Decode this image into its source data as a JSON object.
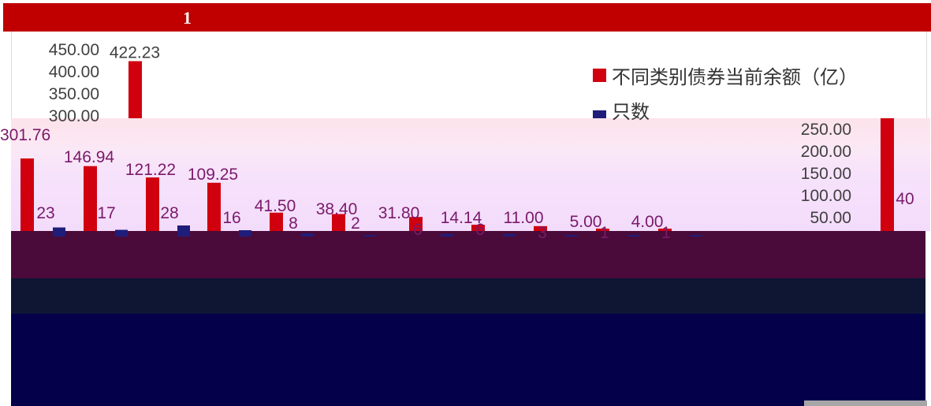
{
  "header": {
    "title": "1"
  },
  "colors": {
    "balance": "#d0000f",
    "count": "#1f1d7a",
    "header": "#c00000"
  },
  "chart_data": {
    "type": "bar",
    "title": "",
    "legend": {
      "position": "right",
      "entries": [
        "不同类别债券当前余额（亿）",
        "只数"
      ]
    },
    "y_axis_left": {
      "ticks": [
        "450.00",
        "400.00",
        "350.00",
        "300.00"
      ],
      "range": [
        0,
        450
      ]
    },
    "y_axis_right": {
      "ticks": [
        "250.00",
        "200.00",
        "150.00",
        "100.00",
        "50.00"
      ]
    },
    "series": [
      {
        "name": "不同类别债券当前余额（亿）",
        "values": [
          422.23,
          146.94,
          121.22,
          109.25,
          41.5,
          38.4,
          31.8,
          14.14,
          11.0,
          5.0,
          4.0
        ],
        "labels": [
          "422.23",
          "146.94",
          "121.22",
          "109.25",
          "41.50",
          "38.40",
          "31.80",
          "14.14",
          "11.00",
          "5.00",
          "4.00"
        ]
      },
      {
        "name": "只数",
        "values": [
          23,
          17,
          28,
          16,
          8,
          2,
          6,
          6,
          3,
          1,
          1
        ],
        "labels": [
          "23",
          "17",
          "28",
          "16",
          "8",
          "2",
          "6",
          "6",
          "3",
          "1",
          "1"
        ]
      }
    ],
    "partial_labels": [
      "301.76",
      "40"
    ]
  }
}
